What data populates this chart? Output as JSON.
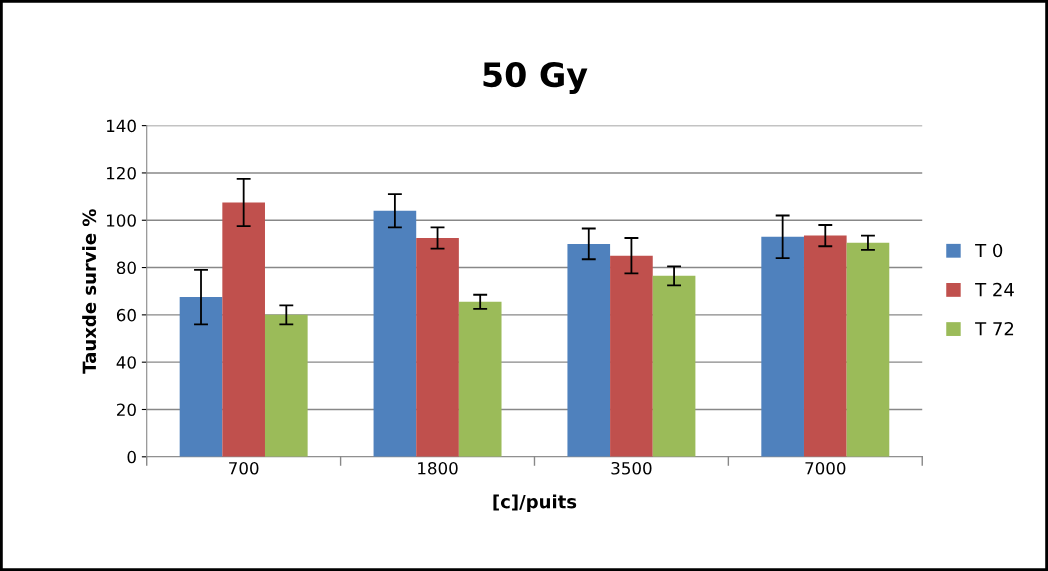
{
  "chart_data": {
    "type": "bar",
    "title": "50 Gy",
    "xlabel": "[c]/puits",
    "ylabel": "Tauxde survie %",
    "categories": [
      "700",
      "1800",
      "3500",
      "7000"
    ],
    "series": [
      {
        "name": "T 0",
        "color": "#4f81bd",
        "values": [
          67.5,
          104,
          90,
          93
        ],
        "errors": [
          11.5,
          7,
          6.5,
          9
        ]
      },
      {
        "name": "T 24",
        "color": "#c0504d",
        "values": [
          107.5,
          92.5,
          85,
          93.5
        ],
        "errors": [
          10,
          4.5,
          7.5,
          4.5
        ]
      },
      {
        "name": "T 72",
        "color": "#9bbb59",
        "values": [
          60,
          65.5,
          76.5,
          90.5
        ],
        "errors": [
          4,
          3,
          4,
          3
        ]
      }
    ],
    "ylim": [
      0,
      140
    ],
    "yticks": [
      0,
      20,
      40,
      60,
      80,
      100,
      120,
      140
    ],
    "grid": "y",
    "legend": "right"
  }
}
